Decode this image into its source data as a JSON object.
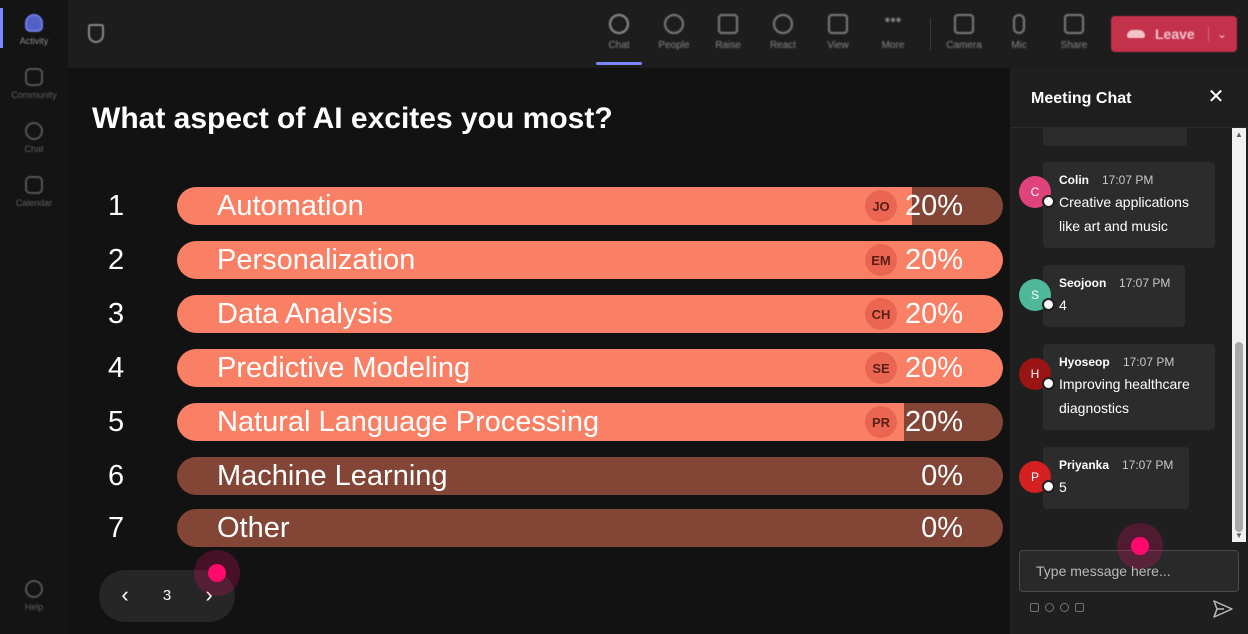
{
  "rail": {
    "items": [
      {
        "label": "Activity"
      },
      {
        "label": "Community"
      },
      {
        "label": "Chat"
      },
      {
        "label": "Calendar"
      }
    ],
    "help_label": "Help"
  },
  "toolbar": {
    "chat_label": "Chat",
    "people_label": "People",
    "raise_label": "Raise",
    "react_label": "React",
    "view_label": "View",
    "more_label": "More",
    "camera_label": "Camera",
    "mic_label": "Mic",
    "share_label": "Share",
    "leave_label": "Leave"
  },
  "poll": {
    "question": "What aspect of AI excites you most?",
    "options": [
      {
        "number": "1",
        "label": "Automation",
        "percent": "20%",
        "fill": 0.89,
        "avatar": "JO"
      },
      {
        "number": "2",
        "label": "Personalization",
        "percent": "20%",
        "fill": 1.0,
        "avatar": "EM"
      },
      {
        "number": "3",
        "label": "Data Analysis",
        "percent": "20%",
        "fill": 1.0,
        "avatar": "CH"
      },
      {
        "number": "4",
        "label": "Predictive Modeling",
        "percent": "20%",
        "fill": 1.0,
        "avatar": "SE"
      },
      {
        "number": "5",
        "label": "Natural Language Processing",
        "percent": "20%",
        "fill": 0.88,
        "avatar": "PR"
      },
      {
        "number": "6",
        "label": "Machine Learning",
        "percent": "0%",
        "fill": 0,
        "avatar": ""
      },
      {
        "number": "7",
        "label": "Other",
        "percent": "0%",
        "fill": 0,
        "avatar": ""
      }
    ],
    "page": "3"
  },
  "chat": {
    "title": "Meeting Chat",
    "messages": [
      {
        "initial": "C",
        "name": "Colin",
        "time": "17:07 PM",
        "lines": [
          "Creative applications",
          "like art and music"
        ],
        "color": "#e0437c"
      },
      {
        "initial": "S",
        "name": "Seojoon",
        "time": "17:07 PM",
        "lines": [
          "4"
        ],
        "color": "#4db89a"
      },
      {
        "initial": "H",
        "name": "Hyoseop",
        "time": "17:07 PM",
        "lines": [
          "Improving healthcare",
          "diagnostics"
        ],
        "color": "#9b1414"
      },
      {
        "initial": "P",
        "name": "Priyanka",
        "time": "17:07 PM",
        "lines": [
          "5"
        ],
        "color": "#d42020"
      }
    ],
    "input_placeholder": "Type message here..."
  },
  "colors": {
    "bar_fill": "#f98064",
    "bar_track": "#834536",
    "avatar_chip": "#eb6652",
    "leave": "#c4314b",
    "click_marker": "#ff0a6c"
  }
}
